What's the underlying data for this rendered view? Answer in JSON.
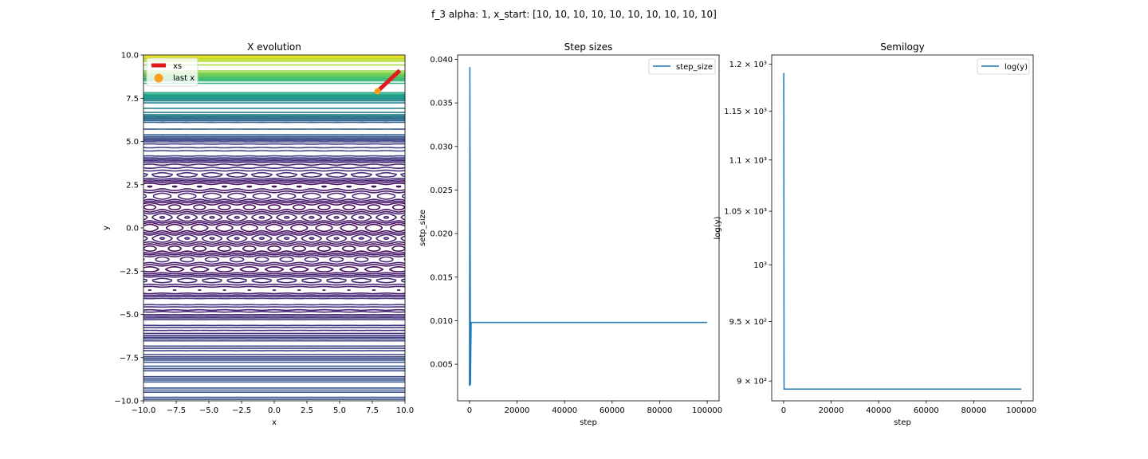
{
  "suptitle": "f_3 alpha: 1, x_start: [10, 10, 10, 10, 10, 10, 10, 10, 10, 10]",
  "colors": {
    "line": "#1f77b4",
    "xs": "#e31a1c",
    "last_x": "#ff9f1c",
    "contour_low": "#440154",
    "contour_high": "#fde725"
  },
  "chart_data": [
    {
      "type": "contour",
      "title": "X evolution",
      "xlabel": "x",
      "ylabel": "y",
      "xlim": [
        -10,
        10
      ],
      "ylim": [
        -10,
        10
      ],
      "xticks": [
        "−10.0",
        "−7.5",
        "−5.0",
        "−2.5",
        "0.0",
        "2.5",
        "5.0",
        "7.5",
        "10.0"
      ],
      "yticks": [
        "−10.0",
        "−7.5",
        "−5.0",
        "−2.5",
        "0.0",
        "2.5",
        "5.0",
        "7.5",
        "10.0"
      ],
      "legend": {
        "position": "upper left",
        "entries": [
          "xs",
          "last x"
        ]
      },
      "series": [
        {
          "name": "xs",
          "x": [
            9.6,
            7.9
          ],
          "y": [
            9.1,
            7.9
          ]
        },
        {
          "name": "last x",
          "x": [
            7.9
          ],
          "y": [
            7.9
          ]
        }
      ],
      "colormap": "viridis"
    },
    {
      "type": "line",
      "title": "Step sizes",
      "xlabel": "step",
      "ylabel": "setp_size",
      "xlim": [
        -5000,
        105000
      ],
      "ylim": [
        0.0008,
        0.0405
      ],
      "xticks": [
        0,
        20000,
        40000,
        60000,
        80000,
        100000
      ],
      "yticks": [
        0.005,
        0.01,
        0.015,
        0.02,
        0.025,
        0.03,
        0.035,
        0.04
      ],
      "legend": {
        "position": "upper right",
        "entries": [
          "step_size"
        ]
      },
      "series": [
        {
          "name": "step_size",
          "x": [
            0,
            150,
            400,
            700,
            100000
          ],
          "y": [
            0.0025,
            0.0391,
            0.0026,
            0.0098,
            0.0098
          ]
        }
      ]
    },
    {
      "type": "line",
      "title": "Semilogy",
      "xlabel": "step",
      "ylabel": "log(y)",
      "yscale": "log",
      "xlim": [
        -5000,
        105000
      ],
      "ylim": [
        884,
        1210
      ],
      "xticks": [
        0,
        20000,
        40000,
        60000,
        80000,
        100000
      ],
      "yticks": [
        {
          "value": 900,
          "label": "9 × 10²"
        },
        {
          "value": 950,
          "label": "9.5 × 10²"
        },
        {
          "value": 1000,
          "label": "10³"
        },
        {
          "value": 1050,
          "label": "1.05 × 10³"
        },
        {
          "value": 1100,
          "label": "1.1 × 10³"
        },
        {
          "value": 1150,
          "label": "1.15 × 10³"
        },
        {
          "value": 1200,
          "label": "1.2 × 10³"
        }
      ],
      "legend": {
        "position": "upper right",
        "entries": [
          "log(y)"
        ]
      },
      "series": [
        {
          "name": "log(y)",
          "x": [
            0,
            50,
            200,
            100000
          ],
          "y": [
            1190,
            1190,
            893.5,
            893.5
          ]
        }
      ]
    }
  ]
}
